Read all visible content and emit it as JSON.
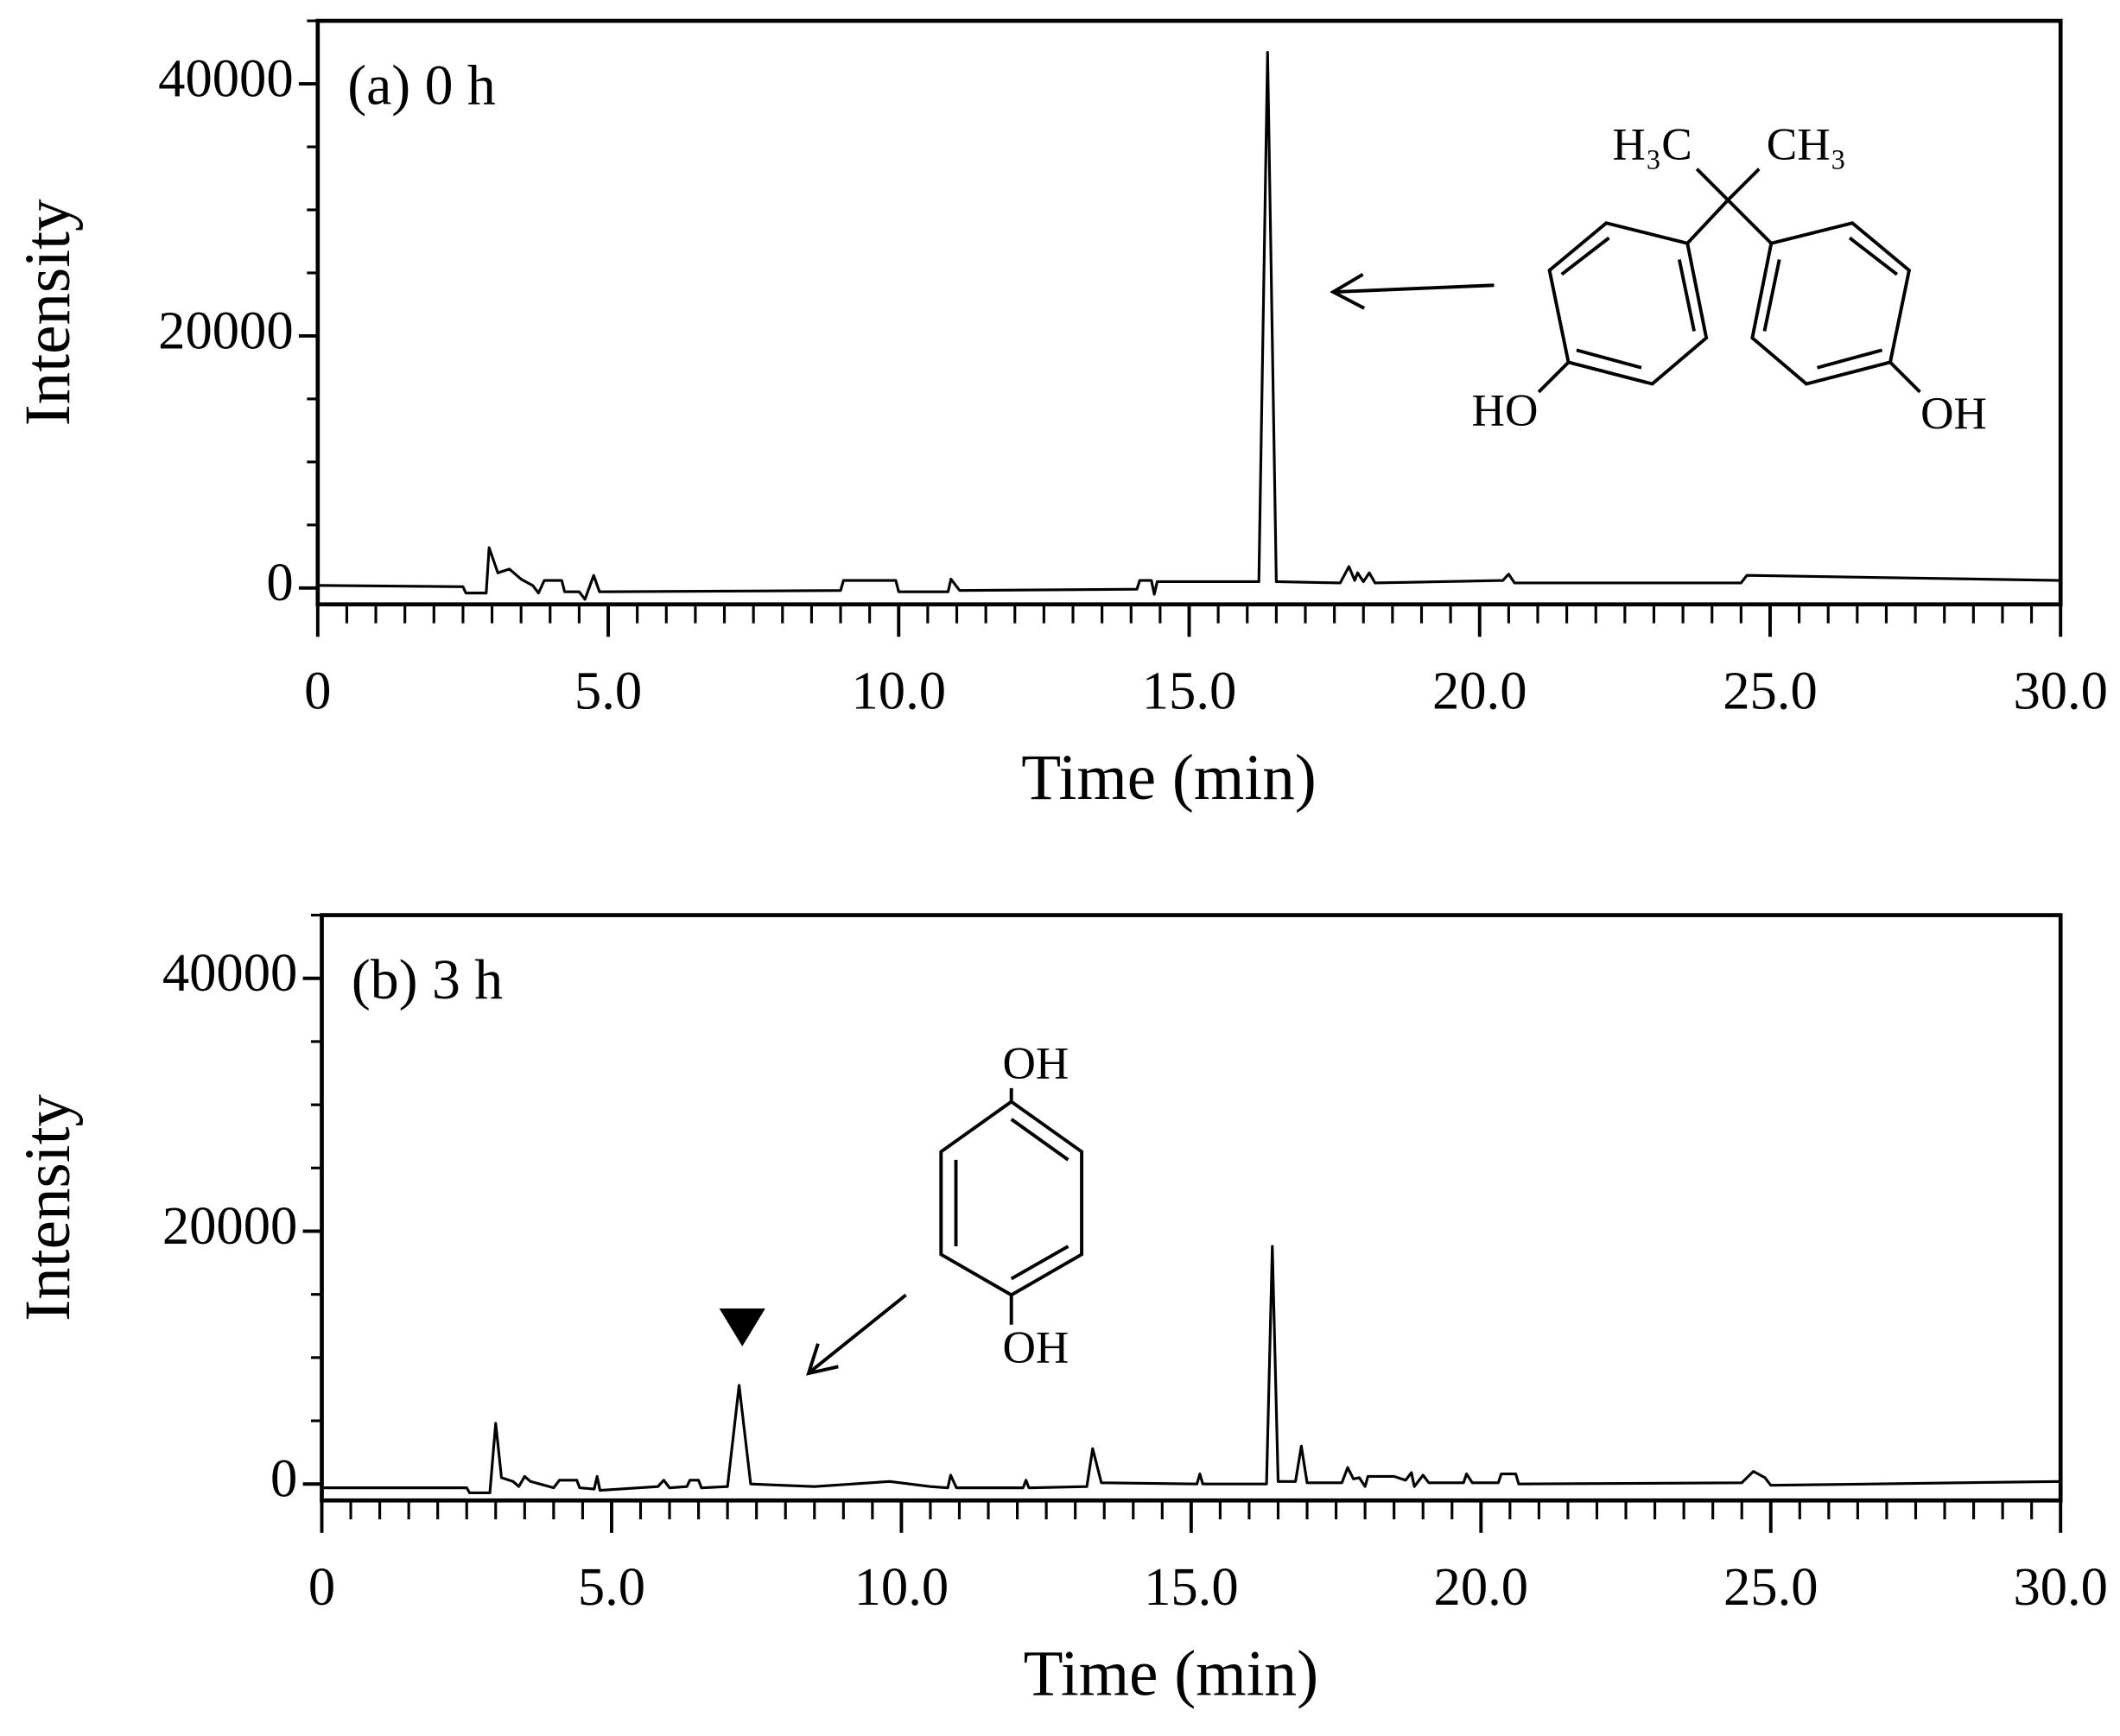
{
  "chart_data": [
    {
      "type": "line",
      "panel_label": "(a) 0 h",
      "xlabel": "Time (min)",
      "ylabel": "Intensity",
      "xlim": [
        0,
        30
      ],
      "xticks": [
        0,
        {
          "value": 5,
          "label": "5.0"
        },
        {
          "value": 10,
          "label": "10.0"
        },
        {
          "value": 15,
          "label": "15.0"
        },
        {
          "value": 20,
          "label": "20.0"
        },
        {
          "value": 25,
          "label": "25.0"
        },
        {
          "value": 30,
          "label": "30.0"
        }
      ],
      "ylim": [
        -1300,
        45000
      ],
      "yticks": [
        0,
        20000,
        40000
      ],
      "color": "#000000",
      "x": [
        0,
        2.5,
        2.55,
        2.9,
        2.95,
        3.1,
        3.3,
        3.5,
        3.7,
        3.8,
        3.9,
        4.2,
        4.25,
        4.5,
        4.6,
        4.75,
        4.85,
        9,
        9.05,
        9.95,
        10,
        10.85,
        10.9,
        11.05,
        14.1,
        14.15,
        14.35,
        14.4,
        14.45,
        16.2,
        16.35,
        16.5,
        17.6,
        17.75,
        17.85,
        17.9,
        18,
        18.1,
        18.2,
        20.4,
        20.5,
        20.6,
        24.5,
        24.6,
        30
      ],
      "values": [
        200,
        100,
        -400,
        -400,
        3200,
        1200,
        1500,
        700,
        200,
        -400,
        600,
        600,
        -300,
        -300,
        -900,
        1000,
        -300,
        -200,
        600,
        600,
        -300,
        -300,
        700,
        -200,
        -100,
        600,
        600,
        -500,
        500,
        500,
        42500,
        500,
        400,
        1700,
        600,
        1200,
        500,
        1200,
        400,
        600,
        1100,
        400,
        400,
        1000,
        600
      ],
      "structure_labels": [
        "H₃C",
        "CH₃",
        "HO",
        "OH"
      ]
    },
    {
      "type": "line",
      "panel_label": "(b) 3 h",
      "xlabel": "Time (min)",
      "ylabel": "Intensity",
      "xlim": [
        0,
        30
      ],
      "xticks": [
        0,
        {
          "value": 5,
          "label": "5.0"
        },
        {
          "value": 10,
          "label": "10.0"
        },
        {
          "value": 15,
          "label": "15.0"
        },
        {
          "value": 20,
          "label": "20.0"
        },
        {
          "value": 25,
          "label": "25.0"
        },
        {
          "value": 30,
          "label": "30.0"
        }
      ],
      "ylim": [
        -1300,
        45000
      ],
      "yticks": [
        0,
        20000,
        40000
      ],
      "color": "#000000",
      "x": [
        0,
        2.5,
        2.55,
        2.9,
        3.0,
        3.1,
        3.3,
        3.4,
        3.5,
        3.6,
        4.0,
        4.1,
        4.4,
        4.45,
        4.7,
        4.75,
        4.8,
        5.8,
        5.9,
        6.0,
        6.3,
        6.35,
        6.5,
        6.55,
        7.0,
        7.2,
        7.4,
        8.5,
        9.8,
        10.5,
        10.8,
        10.85,
        10.95,
        12.1,
        12.15,
        12.2,
        13.2,
        13.3,
        13.45,
        15.1,
        15.15,
        15.2,
        16.3,
        16.4,
        16.5,
        16.8,
        16.9,
        17.0,
        17.6,
        17.7,
        17.8,
        17.9,
        18.0,
        18.05,
        18.5,
        18.7,
        18.8,
        18.85,
        19.0,
        19.1,
        19.7,
        19.75,
        19.85,
        20.3,
        20.35,
        20.6,
        20.65,
        24.5,
        24.7,
        24.9,
        25.0,
        30
      ],
      "values": [
        -300,
        -300,
        -700,
        -700,
        4800,
        500,
        200,
        -200,
        600,
        200,
        -300,
        300,
        300,
        -300,
        -400,
        600,
        -500,
        -200,
        300,
        -300,
        -200,
        300,
        300,
        -300,
        -200,
        7800,
        0,
        -200,
        200,
        -200,
        -300,
        700,
        -300,
        -300,
        300,
        -300,
        -200,
        2800,
        100,
        0,
        800,
        0,
        0,
        18800,
        200,
        200,
        3000,
        100,
        100,
        1300,
        400,
        500,
        -200,
        600,
        600,
        300,
        900,
        -200,
        700,
        100,
        100,
        800,
        100,
        100,
        800,
        800,
        0,
        100,
        1000,
        500,
        -100,
        200
      ],
      "structure_labels": [
        "OH",
        "OH"
      ]
    }
  ]
}
